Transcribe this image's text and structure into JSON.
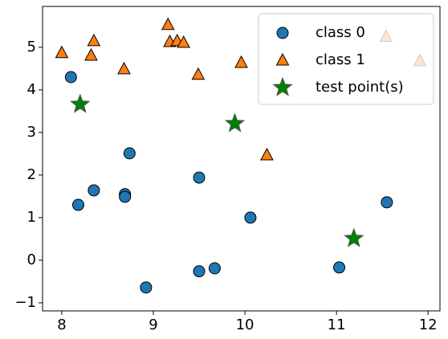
{
  "chart_data": {
    "type": "scatter",
    "xlim": [
      7.79,
      12.13
    ],
    "ylim": [
      -1.19,
      5.96
    ],
    "xticks": [
      8,
      9,
      10,
      11,
      12
    ],
    "yticks": [
      {
        "value": -1,
        "label": "−1"
      },
      0,
      1,
      2,
      3,
      4,
      5
    ],
    "legend": "upper right",
    "series": [
      {
        "name": "class 0",
        "color": "#1f77b4",
        "marker": "circle",
        "x": [
          8.1,
          8.18,
          8.35,
          8.69,
          8.69,
          8.74,
          8.92,
          9.5,
          9.5,
          9.67,
          10.06,
          11.03,
          11.55
        ],
        "y": [
          4.3,
          1.3,
          1.64,
          1.55,
          1.49,
          2.51,
          -0.64,
          1.94,
          -0.26,
          -0.19,
          1.0,
          -0.17,
          1.36
        ]
      },
      {
        "name": "class 1",
        "color": "#ff7f0e",
        "marker": "triangle",
        "x": [
          8.0,
          8.32,
          8.35,
          8.68,
          9.16,
          9.18,
          9.26,
          9.33,
          9.49,
          9.96,
          10.24,
          11.54,
          11.91
        ],
        "y": [
          4.87,
          4.81,
          5.15,
          4.49,
          5.53,
          5.13,
          5.15,
          5.11,
          4.36,
          4.64,
          2.47,
          5.25,
          4.68
        ]
      },
      {
        "name": "test point(s)",
        "color": "#008000",
        "marker": "star",
        "x": [
          8.2,
          9.89,
          11.19
        ],
        "y": [
          3.66,
          3.21,
          0.51
        ]
      }
    ]
  }
}
